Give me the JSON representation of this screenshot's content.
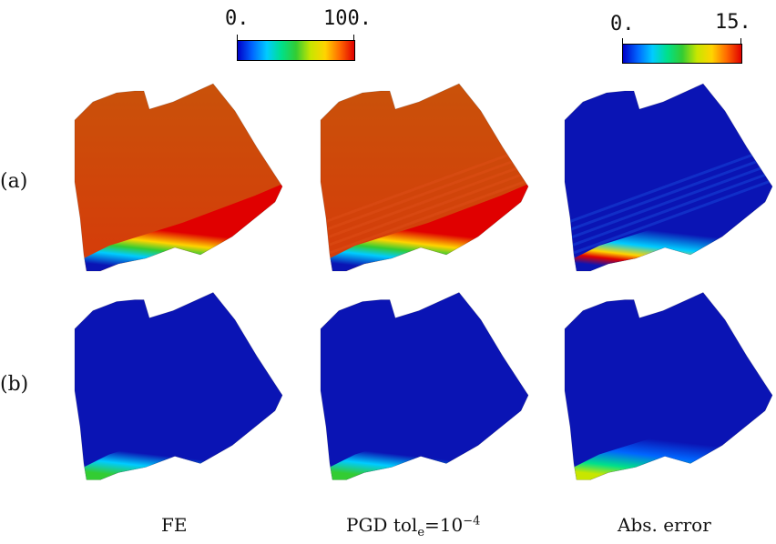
{
  "colorbars": {
    "left": {
      "min_label": "0.",
      "max_label": "100."
    },
    "right": {
      "min_label": "0.",
      "max_label": "15."
    }
  },
  "row_labels": {
    "a": "(a)",
    "b": "(b)"
  },
  "column_labels": {
    "fe": "FE",
    "pgd_prefix": "PGD tol",
    "pgd_sub": "e",
    "pgd_eq": "=10",
    "pgd_sup": "−4",
    "abs_error": "Abs. error"
  },
  "colormap": [
    "#0000c8",
    "#0066ff",
    "#00ccff",
    "#00e08a",
    "#33cc33",
    "#c8e600",
    "#ffd400",
    "#ff6a00",
    "#e00000"
  ],
  "panels": [
    {
      "row": "a",
      "column": "FE",
      "base": "#d63a0a",
      "top_tint": "#c9520a",
      "band": "low-edge-cold",
      "stripes": false
    },
    {
      "row": "a",
      "column": "PGD",
      "base": "#d63a0a",
      "top_tint": "#c9520a",
      "band": "low-edge-cold",
      "stripes": true
    },
    {
      "row": "a",
      "column": "Abs. error",
      "base": "#0a14b4",
      "band": "error-hotspot",
      "stripes": true
    },
    {
      "row": "b",
      "column": "FE",
      "base": "#0a14b4",
      "band": "low-edge-warm",
      "stripes": false
    },
    {
      "row": "b",
      "column": "PGD",
      "base": "#0a14b4",
      "band": "low-edge-warm",
      "stripes": false
    },
    {
      "row": "b",
      "column": "Abs. error",
      "base": "#0a14b4",
      "band": "low-edge-hot",
      "stripes": false
    }
  ]
}
